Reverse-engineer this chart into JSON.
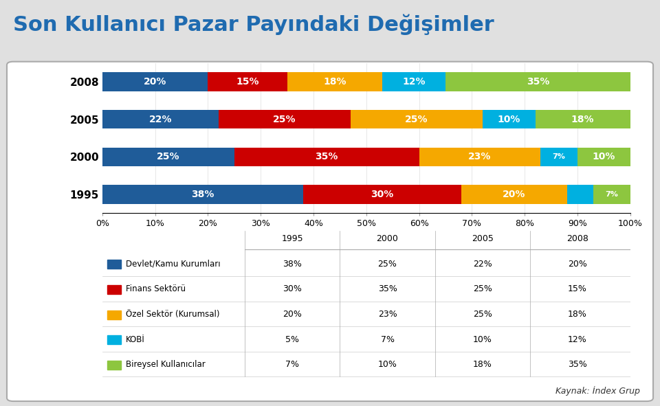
{
  "title": "Son Kullanıcı Pazar Payındaki Değişimler",
  "title_color": "#1F6BB0",
  "title_fontsize": 22,
  "years": [
    "1995",
    "2000",
    "2005",
    "2008"
  ],
  "categories": [
    "Devlet/Kamu Kurumları",
    "Finans Sektörü",
    "Özel Sektör (Kurumsal)",
    "KOBİ",
    "Bireysel Kullanıcılar"
  ],
  "colors": [
    "#1F5C99",
    "#CC0000",
    "#F5A800",
    "#00B0E0",
    "#8DC63F"
  ],
  "data": {
    "1995": [
      38,
      30,
      20,
      5,
      7
    ],
    "2000": [
      25,
      35,
      23,
      7,
      10
    ],
    "2005": [
      22,
      25,
      25,
      10,
      18
    ],
    "2008": [
      20,
      15,
      18,
      12,
      35
    ]
  },
  "bar_height": 0.5,
  "source_text": "Kaynak: İndex Grup",
  "gold_line_color": "#F5A800",
  "red_line_color": "#CC0000",
  "outer_bg": "#E0E0E0"
}
